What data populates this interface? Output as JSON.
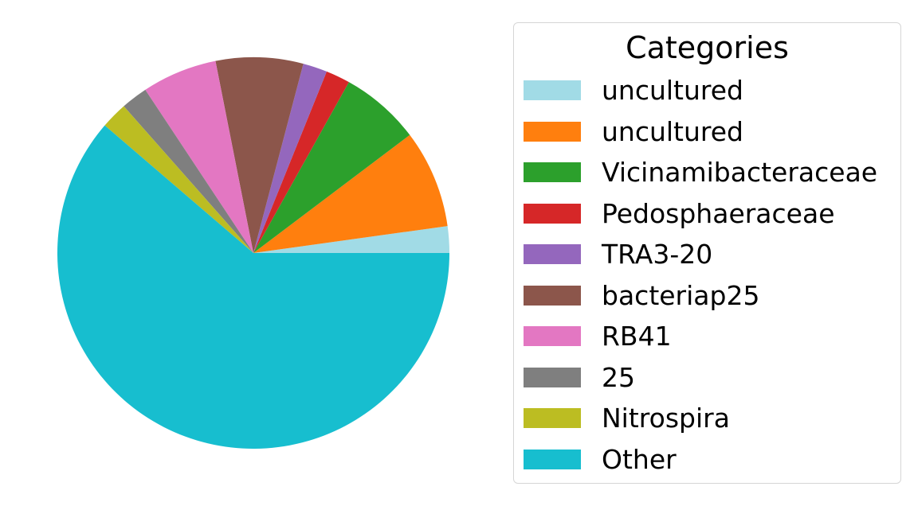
{
  "chart_data": {
    "type": "pie",
    "legend_title": "Categories",
    "legend_position": "right",
    "start_angle_deg": 0,
    "direction": "counterclockwise",
    "slices": [
      {
        "label": "uncultured",
        "value": 2.2,
        "color": "#a1dbe6"
      },
      {
        "label": "uncultured",
        "value": 8.1,
        "color": "#ff7f0e"
      },
      {
        "label": "Vicinamibacteraceae",
        "value": 6.6,
        "color": "#2ca02c"
      },
      {
        "label": "Pedosphaeraceae",
        "value": 2.0,
        "color": "#d62728"
      },
      {
        "label": "TRA3-20",
        "value": 2.0,
        "color": "#9467bd"
      },
      {
        "label": "bacteriap25",
        "value": 7.2,
        "color": "#8c564b"
      },
      {
        "label": "RB41",
        "value": 6.2,
        "color": "#e377c2"
      },
      {
        "label": "25",
        "value": 2.2,
        "color": "#7f7f7f"
      },
      {
        "label": "Nitrospira",
        "value": 2.2,
        "color": "#bcbd22"
      },
      {
        "label": "Other",
        "value": 61.3,
        "color": "#17becf"
      }
    ]
  }
}
